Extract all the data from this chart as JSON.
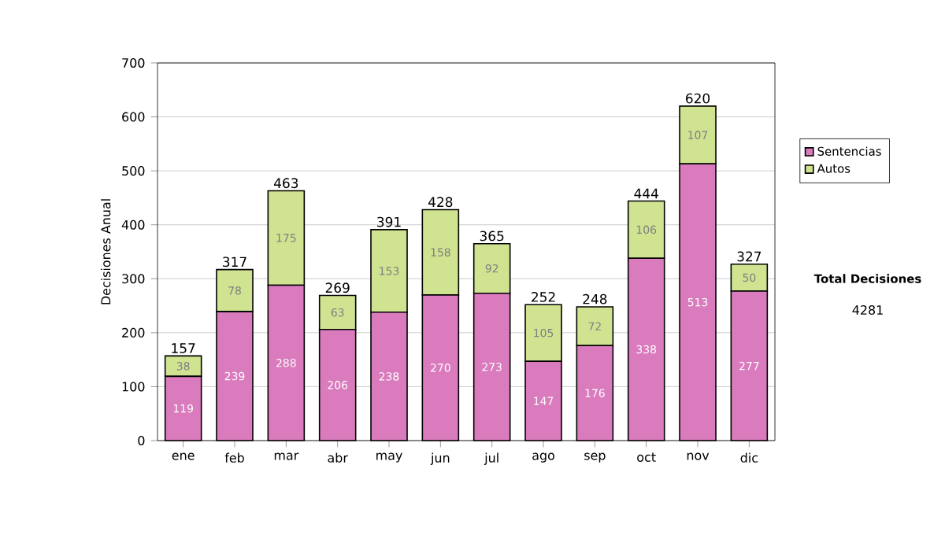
{
  "chart_data": {
    "type": "bar",
    "stacked": true,
    "ylabel": "Decisiones Anual",
    "categories": [
      "ene",
      "feb",
      "mar",
      "abr",
      "may",
      "jun",
      "jul",
      "ago",
      "sep",
      "oct",
      "nov",
      "dic"
    ],
    "series": [
      {
        "name": "Sentencias",
        "color": "#d97bbd",
        "values": [
          119,
          239,
          288,
          206,
          238,
          270,
          273,
          147,
          176,
          338,
          513,
          277
        ]
      },
      {
        "name": "Autos",
        "color": "#cfe391",
        "values": [
          38,
          78,
          175,
          63,
          153,
          158,
          92,
          105,
          72,
          106,
          107,
          50
        ]
      }
    ],
    "totals": [
      "157",
      "317",
      "463",
      "269",
      "391",
      "428",
      "365",
      "252",
      "248",
      "444",
      "620",
      "327"
    ],
    "data_labels": true,
    "ylim": [
      0,
      700
    ],
    "yticks": [
      0,
      100,
      200,
      300,
      400,
      500,
      600,
      700
    ],
    "grid": "y",
    "legend": "right",
    "annotations": [
      "Total Decisiones",
      "4281"
    ]
  }
}
